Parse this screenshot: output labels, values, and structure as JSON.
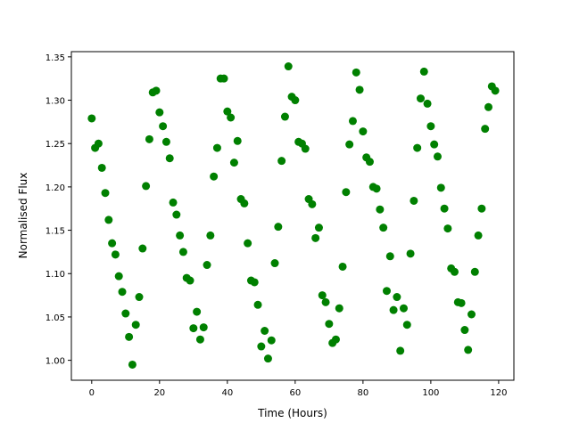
{
  "chart_data": {
    "type": "scatter",
    "title": "",
    "xlabel": "Time (Hours)",
    "ylabel": "Normalised Flux",
    "xlim": [
      -6,
      124.5
    ],
    "ylim": [
      0.977,
      1.356
    ],
    "xticks": [
      "0",
      "20",
      "40",
      "60",
      "80",
      "100",
      "120"
    ],
    "yticks": [
      "1.00",
      "1.05",
      "1.10",
      "1.15",
      "1.20",
      "1.25",
      "1.30",
      "1.35"
    ],
    "grid": false,
    "marker_color": "#008000",
    "x": [
      0,
      1,
      2,
      3,
      4,
      5,
      6,
      7,
      8,
      9,
      10,
      11,
      12,
      13,
      14,
      15,
      16,
      17,
      18,
      19,
      20,
      21,
      22,
      23,
      24,
      25,
      26,
      27,
      28,
      29,
      30,
      31,
      32,
      33,
      34,
      35,
      36,
      37,
      38,
      39,
      40,
      41,
      42,
      43,
      44,
      45,
      46,
      47,
      48,
      49,
      50,
      51,
      52,
      53,
      54,
      55,
      56,
      57,
      58,
      59,
      60,
      61,
      62,
      63,
      64,
      65,
      66,
      67,
      68,
      69,
      70,
      71,
      72,
      73,
      74,
      75,
      76,
      77,
      78,
      79,
      80,
      81,
      82,
      83,
      84,
      85,
      86,
      87,
      88,
      89,
      90,
      91,
      92,
      93,
      94,
      95,
      96,
      97,
      98,
      99,
      100,
      101,
      102,
      103,
      104,
      105,
      106,
      107,
      108,
      109,
      110,
      111,
      112,
      113,
      114,
      115,
      116,
      117,
      118,
      119
    ],
    "y": [
      1.279,
      1.245,
      1.25,
      1.222,
      1.193,
      1.162,
      1.135,
      1.122,
      1.097,
      1.079,
      1.054,
      1.027,
      0.995,
      1.041,
      1.073,
      1.129,
      1.201,
      1.255,
      1.309,
      1.311,
      1.286,
      1.27,
      1.252,
      1.233,
      1.182,
      1.168,
      1.144,
      1.125,
      1.095,
      1.092,
      1.037,
      1.056,
      1.024,
      1.038,
      1.11,
      1.144,
      1.212,
      1.245,
      1.325,
      1.325,
      1.287,
      1.28,
      1.228,
      1.253,
      1.186,
      1.181,
      1.135,
      1.092,
      1.09,
      1.064,
      1.016,
      1.034,
      1.002,
      1.023,
      1.112,
      1.154,
      1.23,
      1.281,
      1.339,
      1.304,
      1.3,
      1.252,
      1.25,
      1.244,
      1.186,
      1.18,
      1.141,
      1.153,
      1.075,
      1.067,
      1.042,
      1.02,
      1.024,
      1.06,
      1.108,
      1.194,
      1.249,
      1.276,
      1.332,
      1.312,
      1.264,
      1.234,
      1.229,
      1.2,
      1.198,
      1.174,
      1.153,
      1.08,
      1.12,
      1.058,
      1.073,
      1.011,
      1.06,
      1.041,
      1.123,
      1.184,
      1.245,
      1.302,
      1.333,
      1.296,
      1.27,
      1.249,
      1.235,
      1.199,
      1.175,
      1.152,
      1.106,
      1.102,
      1.067,
      1.066,
      1.035,
      1.012,
      1.053,
      1.102,
      1.144,
      1.175,
      1.267,
      1.292,
      1.316,
      1.311
    ]
  }
}
